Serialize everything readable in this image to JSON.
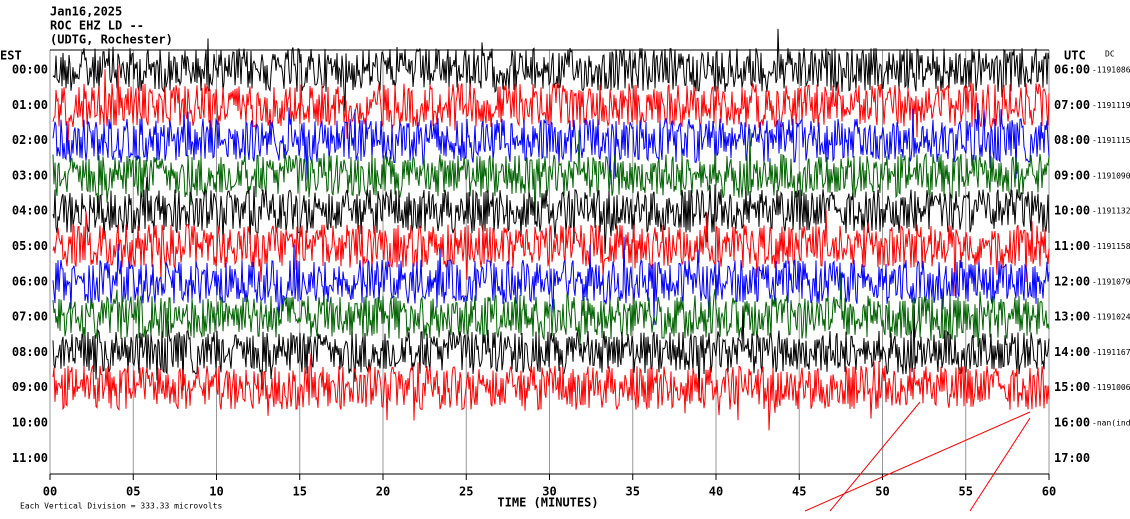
{
  "header": {
    "date": "Jan16,2025",
    "station": "ROC EHZ LD --",
    "location": "(UDTG, Rochester)",
    "left_zone": "EST",
    "right_zone": "UTC",
    "dc_label": "DC"
  },
  "rows": [
    {
      "est": "00:00",
      "utc": "06:00",
      "dc": "-1191086",
      "color": "#000000"
    },
    {
      "est": "01:00",
      "utc": "07:00",
      "dc": "-1191119",
      "color": "#ff0000"
    },
    {
      "est": "02:00",
      "utc": "08:00",
      "dc": "-1191115",
      "color": "#0000ff"
    },
    {
      "est": "03:00",
      "utc": "09:00",
      "dc": "-1191090",
      "color": "#006400"
    },
    {
      "est": "04:00",
      "utc": "10:00",
      "dc": "-1191132",
      "color": "#000000"
    },
    {
      "est": "05:00",
      "utc": "11:00",
      "dc": "-1191158",
      "color": "#ff0000"
    },
    {
      "est": "06:00",
      "utc": "12:00",
      "dc": "-1191079",
      "color": "#0000ff"
    },
    {
      "est": "07:00",
      "utc": "13:00",
      "dc": "-1191024",
      "color": "#006400"
    },
    {
      "est": "08:00",
      "utc": "14:00",
      "dc": "-1191167",
      "color": "#000000"
    },
    {
      "est": "09:00",
      "utc": "15:00",
      "dc": "-1191006",
      "color": "#ff0000"
    },
    {
      "est": "10:00",
      "utc": "16:00",
      "dc": "-nan(ind"
    },
    {
      "est": "11:00",
      "utc": "17:00"
    }
  ],
  "x_axis": {
    "label": "TIME (MINUTES)",
    "xlim": [
      0,
      60
    ],
    "ticks": [
      {
        "value": 0,
        "label": "00"
      },
      {
        "value": 5,
        "label": "05"
      },
      10,
      15,
      20,
      25,
      30,
      35,
      40,
      45,
      50,
      55,
      60
    ]
  },
  "footer": "Each Vertical Division =  333.33 microvolts"
}
